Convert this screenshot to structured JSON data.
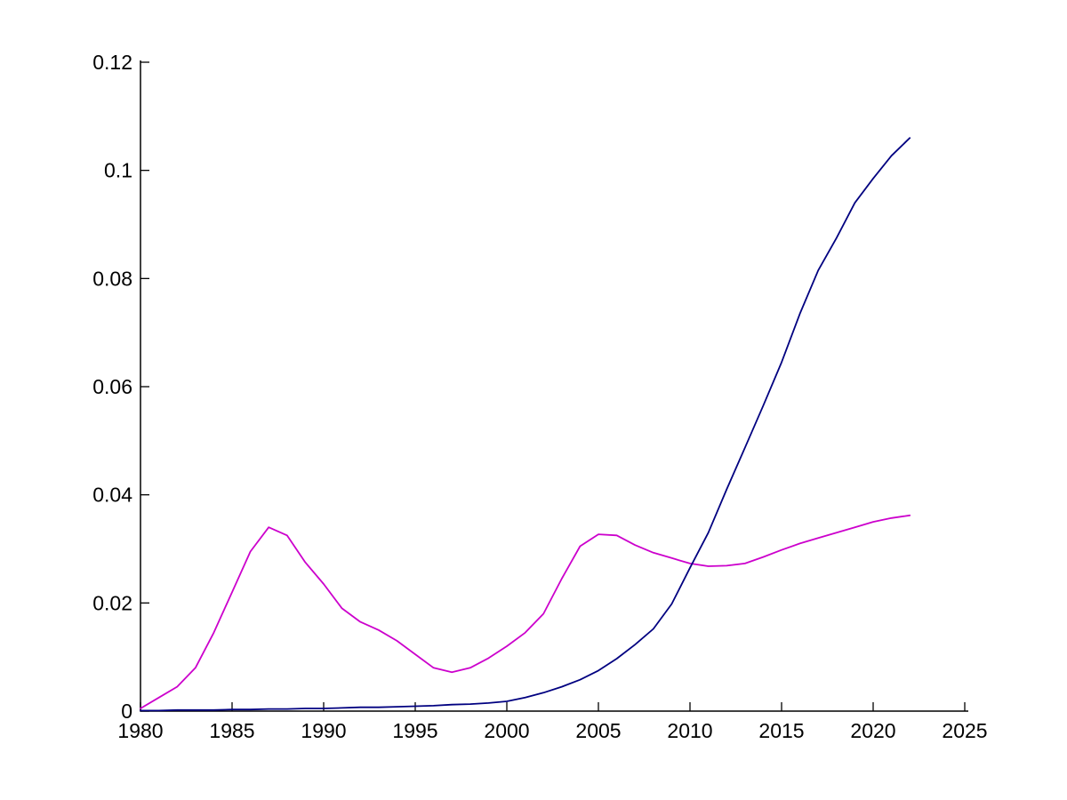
{
  "figure": {
    "background": "#ffffff"
  },
  "chart_data": {
    "type": "line",
    "title": "",
    "xlabel": "",
    "ylabel": "",
    "xlim": [
      1980,
      2025
    ],
    "ylim": [
      0,
      0.12
    ],
    "grid": false,
    "legend": null,
    "axis_color": "#000000",
    "x_ticks": [
      1980,
      1985,
      1990,
      1995,
      2000,
      2005,
      2010,
      2015,
      2020,
      2025
    ],
    "x_tick_labels": [
      "1980",
      "1985",
      "1990",
      "1995",
      "2000",
      "2005",
      "2010",
      "2015",
      "2020",
      "2025"
    ],
    "y_ticks": [
      0,
      0.02,
      0.04,
      0.06,
      0.08,
      0.1,
      0.12
    ],
    "y_tick_labels": [
      "0",
      "0.02",
      "0.04",
      "0.06",
      "0.08",
      "0.1",
      "0.12"
    ],
    "x": [
      1980,
      1981,
      1982,
      1983,
      1984,
      1985,
      1986,
      1987,
      1988,
      1989,
      1990,
      1991,
      1992,
      1993,
      1994,
      1995,
      1996,
      1997,
      1998,
      1999,
      2000,
      2001,
      2002,
      2003,
      2004,
      2005,
      2006,
      2007,
      2008,
      2009,
      2010,
      2011,
      2012,
      2013,
      2014,
      2015,
      2016,
      2017,
      2018,
      2019,
      2020,
      2021,
      2022
    ],
    "series": [
      {
        "name": "magenta",
        "color": "#cc00cc",
        "values": [
          0.0005,
          0.0025,
          0.0045,
          0.008,
          0.0145,
          0.022,
          0.0295,
          0.034,
          0.0325,
          0.0275,
          0.0235,
          0.019,
          0.0165,
          0.015,
          0.013,
          0.0105,
          0.008,
          0.0072,
          0.008,
          0.0098,
          0.012,
          0.0145,
          0.018,
          0.0245,
          0.0305,
          0.0327,
          0.0325,
          0.0307,
          0.0293,
          0.0283,
          0.0273,
          0.0268,
          0.0269,
          0.0273,
          0.0285,
          0.0298,
          0.031,
          0.032,
          0.033,
          0.034,
          0.035,
          0.0357,
          0.0362
        ]
      },
      {
        "name": "navy",
        "color": "#000080",
        "values": [
          0.0001,
          0.0001,
          0.0002,
          0.0002,
          0.0002,
          0.0003,
          0.0003,
          0.0004,
          0.0004,
          0.0005,
          0.0005,
          0.0006,
          0.0007,
          0.0007,
          0.0008,
          0.0009,
          0.001,
          0.0012,
          0.0013,
          0.0015,
          0.0018,
          0.0025,
          0.0034,
          0.0045,
          0.0058,
          0.0075,
          0.0097,
          0.0123,
          0.0152,
          0.0198,
          0.0265,
          0.033,
          0.041,
          0.0487,
          0.0565,
          0.0645,
          0.0735,
          0.0815,
          0.0875,
          0.094,
          0.0985,
          0.1027,
          0.106
        ]
      }
    ]
  }
}
